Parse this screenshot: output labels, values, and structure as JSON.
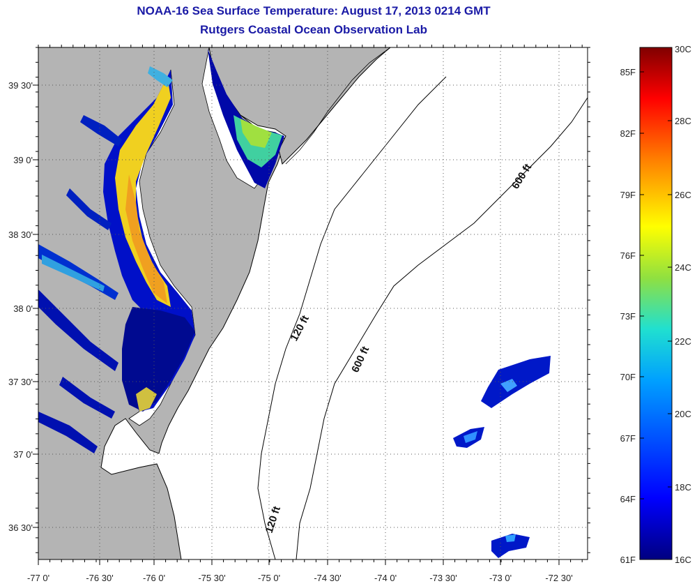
{
  "title": "NOAA-16 Sea Surface Temperature:  August 17, 2013 0214 GMT",
  "subtitle": "Rutgers Coastal Ocean Observation Lab",
  "colors": {
    "land": "#b4b4b4",
    "water": "#ffffff",
    "grid": "#555555",
    "coast": "#000000"
  },
  "map": {
    "lon_ticks": [
      "-77 0'",
      "-76 30'",
      "-76 0'",
      "-75 30'",
      "-75 0'",
      "-74 30'",
      "-74 0'",
      "-73 30'",
      "-73 0'",
      "-72 30'"
    ],
    "lat_ticks": [
      "39 30'",
      "39 0'",
      "38 30'",
      "38 0'",
      "37 30'",
      "37 0'",
      "36 30'"
    ],
    "isobaths": [
      {
        "label": "120 ft"
      },
      {
        "label": "600 ft"
      },
      {
        "label": "600 ft"
      },
      {
        "label": "120 ft"
      }
    ]
  },
  "colorbar": {
    "celsius": [
      "30C",
      "28C",
      "26C",
      "24C",
      "22C",
      "20C",
      "18C",
      "16C"
    ],
    "fahrenheit": [
      "85F",
      "82F",
      "79F",
      "76F",
      "73F",
      "70F",
      "67F",
      "64F",
      "61F"
    ]
  }
}
